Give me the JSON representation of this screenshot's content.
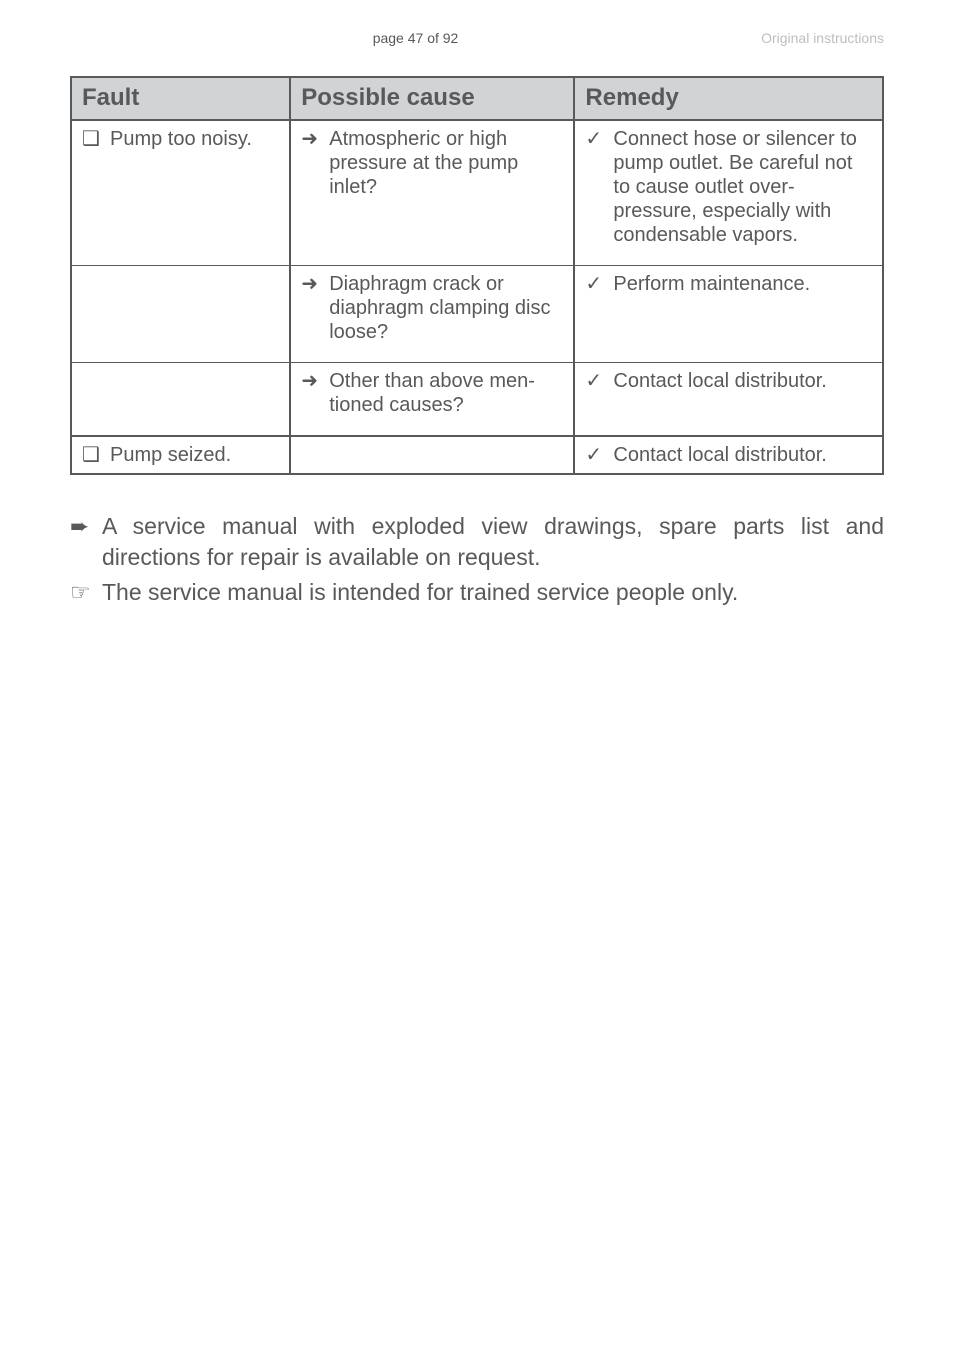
{
  "header": {
    "page_label": "page 47 of 92",
    "right_label": "Original instructions"
  },
  "table": {
    "headers": {
      "fault": "Fault",
      "cause": "Possible cause",
      "remedy": "Remedy"
    },
    "rows": [
      {
        "fault_icon": "❑",
        "fault": "Pump too noisy.",
        "cause_icon": "➜",
        "cause": "Atmospheric or high pressure at the pump inlet?",
        "remedy_icon": "✓",
        "remedy": "Connect hose or silencer to pump outlet. Be careful not to cause outlet over-pressure, especially with condensable vapors."
      },
      {
        "fault_icon": "",
        "fault": "",
        "cause_icon": "➜",
        "cause": "Diaphragm crack or diaphragm clamping disc loose?",
        "remedy_icon": "✓",
        "remedy": "Perform maintenance."
      },
      {
        "fault_icon": "",
        "fault": "",
        "cause_icon": "➜",
        "cause": "Other than above men-tioned causes?",
        "remedy_icon": "✓",
        "remedy": "Contact local distributor."
      },
      {
        "fault_icon": "❑",
        "fault": "Pump seized.",
        "cause_icon": "",
        "cause": "",
        "remedy_icon": "✓",
        "remedy": "Contact local distributor."
      }
    ]
  },
  "notes": [
    {
      "icon": "➨",
      "text": "A service manual with exploded view drawings, spare parts list and directions for repair is available on request."
    },
    {
      "icon": "☞",
      "text": "The service manual is intended for trained service people only."
    }
  ],
  "colors": {
    "text": "#58595b",
    "header_bg": "#d1d3d4",
    "muted": "#bcbec0"
  }
}
